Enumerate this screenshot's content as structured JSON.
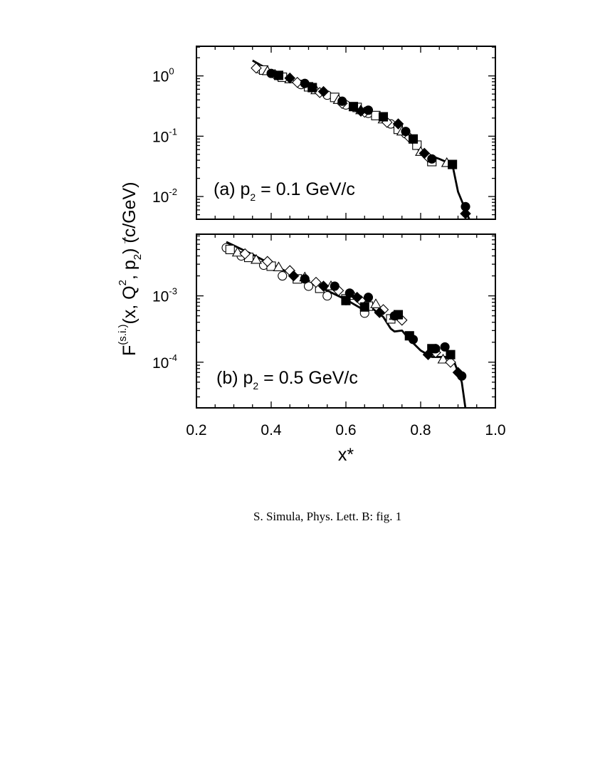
{
  "chart_data": [
    {
      "type": "scatter",
      "panel_id": "a",
      "title": "(a)  p2 = 0.1 GeV/c",
      "panel_label": {
        "prefix": "(a)  p",
        "sub": "2",
        "suffix": " = 0.1 GeV/c"
      },
      "xlabel": "x*",
      "ylabel": "F^(s.i.)(x, Q^2, p2) (c/GeV)",
      "x_scale": "linear",
      "y_scale": "log",
      "xlim": [
        0.2,
        1.0
      ],
      "ylim": [
        0.0042,
        3.1
      ],
      "y_ticks": [
        {
          "value": 1.0,
          "base": "10",
          "exp": "0"
        },
        {
          "value": 0.1,
          "base": "10",
          "exp": "-1"
        },
        {
          "value": 0.01,
          "base": "10",
          "exp": "-2"
        }
      ],
      "series": [
        {
          "name": "open circle",
          "marker": "circle",
          "filled": false,
          "points": [
            [
              0.37,
              1.3
            ],
            [
              0.42,
              1.0
            ],
            [
              0.48,
              0.72
            ],
            [
              0.55,
              0.48
            ],
            [
              0.6,
              0.33
            ],
            [
              0.66,
              0.24
            ],
            [
              0.72,
              0.16
            ],
            [
              0.76,
              0.11
            ]
          ]
        },
        {
          "name": "open square",
          "marker": "square",
          "filled": false,
          "points": [
            [
              0.38,
              1.25
            ],
            [
              0.43,
              0.95
            ],
            [
              0.5,
              0.66
            ],
            [
              0.57,
              0.44
            ],
            [
              0.63,
              0.3
            ],
            [
              0.68,
              0.22
            ],
            [
              0.74,
              0.13
            ],
            [
              0.79,
              0.071
            ],
            [
              0.83,
              0.038
            ]
          ]
        },
        {
          "name": "open triangle",
          "marker": "triangle",
          "filled": false,
          "points": [
            [
              0.39,
              1.2
            ],
            [
              0.45,
              0.88
            ],
            [
              0.52,
              0.58
            ],
            [
              0.58,
              0.4
            ],
            [
              0.64,
              0.27
            ],
            [
              0.7,
              0.19
            ],
            [
              0.75,
              0.12
            ],
            [
              0.8,
              0.055
            ],
            [
              0.87,
              0.036
            ]
          ]
        },
        {
          "name": "open diamond",
          "marker": "diamond",
          "filled": false,
          "points": [
            [
              0.36,
              1.35
            ],
            [
              0.41,
              1.05
            ],
            [
              0.47,
              0.78
            ],
            [
              0.53,
              0.53
            ],
            [
              0.59,
              0.35
            ],
            [
              0.65,
              0.25
            ],
            [
              0.71,
              0.17
            ],
            [
              0.77,
              0.095
            ],
            [
              0.82,
              0.045
            ]
          ]
        },
        {
          "name": "filled circle",
          "marker": "circle",
          "filled": true,
          "points": [
            [
              0.4,
              1.1
            ],
            [
              0.49,
              0.75
            ],
            [
              0.59,
              0.38
            ],
            [
              0.66,
              0.27
            ],
            [
              0.76,
              0.12
            ],
            [
              0.83,
              0.042
            ],
            [
              0.92,
              0.0068
            ]
          ]
        },
        {
          "name": "filled square",
          "marker": "square",
          "filled": true,
          "points": [
            [
              0.42,
              1.02
            ],
            [
              0.51,
              0.64
            ],
            [
              0.62,
              0.31
            ],
            [
              0.7,
              0.21
            ],
            [
              0.78,
              0.09
            ],
            [
              0.885,
              0.034
            ]
          ]
        },
        {
          "name": "filled diamond",
          "marker": "diamond",
          "filled": true,
          "points": [
            [
              0.45,
              0.92
            ],
            [
              0.54,
              0.55
            ],
            [
              0.64,
              0.26
            ],
            [
              0.74,
              0.16
            ],
            [
              0.81,
              0.052
            ],
            [
              0.92,
              0.0052
            ]
          ]
        }
      ],
      "curve": {
        "name": "theory",
        "points": [
          [
            0.35,
            1.8
          ],
          [
            0.4,
            1.2
          ],
          [
            0.45,
            0.85
          ],
          [
            0.5,
            0.63
          ],
          [
            0.55,
            0.46
          ],
          [
            0.6,
            0.34
          ],
          [
            0.65,
            0.25
          ],
          [
            0.7,
            0.18
          ],
          [
            0.75,
            0.12
          ],
          [
            0.8,
            0.055
          ],
          [
            0.85,
            0.042
          ],
          [
            0.885,
            0.034
          ],
          [
            0.9,
            0.012
          ],
          [
            0.92,
            0.006
          ],
          [
            0.93,
            0.0042
          ]
        ]
      }
    },
    {
      "type": "scatter",
      "panel_id": "b",
      "title": "(b)  p2 = 0.5 GeV/c",
      "panel_label": {
        "prefix": "(b)  p",
        "sub": "2",
        "suffix": " = 0.5 GeV/c"
      },
      "xlabel": "x*",
      "ylabel": "F^(s.i.)(x, Q^2, p2) (c/GeV)",
      "x_scale": "linear",
      "y_scale": "log",
      "xlim": [
        0.2,
        1.0
      ],
      "ylim": [
        2.05e-05,
        0.0085
      ],
      "y_ticks": [
        {
          "value": 0.001,
          "base": "10",
          "exp": "-3"
        },
        {
          "value": 0.0001,
          "base": "10",
          "exp": "-4"
        }
      ],
      "series": [
        {
          "name": "open circle",
          "marker": "circle",
          "filled": false,
          "points": [
            [
              0.28,
              0.0053
            ],
            [
              0.32,
              0.004
            ],
            [
              0.38,
              0.0029
            ],
            [
              0.43,
              0.002
            ],
            [
              0.5,
              0.0014
            ],
            [
              0.55,
              0.001
            ],
            [
              0.6,
              0.00085
            ],
            [
              0.65,
              0.00055
            ]
          ]
        },
        {
          "name": "open square",
          "marker": "square",
          "filled": false,
          "points": [
            [
              0.29,
              0.005
            ],
            [
              0.34,
              0.0038
            ],
            [
              0.4,
              0.0028
            ],
            [
              0.47,
              0.0018
            ],
            [
              0.53,
              0.0013
            ],
            [
              0.6,
              0.0009
            ],
            [
              0.66,
              0.0007
            ],
            [
              0.72,
              0.00045
            ]
          ]
        },
        {
          "name": "open triangle",
          "marker": "triangle",
          "filled": false,
          "points": [
            [
              0.31,
              0.0045
            ],
            [
              0.36,
              0.0035
            ],
            [
              0.42,
              0.0027
            ],
            [
              0.49,
              0.0019
            ],
            [
              0.56,
              0.0014
            ],
            [
              0.62,
              0.001
            ],
            [
              0.68,
              0.00075
            ],
            [
              0.73,
              0.0005
            ],
            [
              0.86,
              0.00011
            ]
          ]
        },
        {
          "name": "open diamond",
          "marker": "diamond",
          "filled": false,
          "points": [
            [
              0.33,
              0.0043
            ],
            [
              0.39,
              0.0033
            ],
            [
              0.45,
              0.0024
            ],
            [
              0.52,
              0.0016
            ],
            [
              0.58,
              0.0012
            ],
            [
              0.64,
              0.00085
            ],
            [
              0.7,
              0.00062
            ],
            [
              0.75,
              0.00043
            ],
            [
              0.84,
              0.00014
            ],
            [
              0.88,
              0.0001
            ]
          ]
        },
        {
          "name": "filled circle",
          "marker": "circle",
          "filled": true,
          "points": [
            [
              0.49,
              0.0018
            ],
            [
              0.57,
              0.0014
            ],
            [
              0.61,
              0.0011
            ],
            [
              0.66,
              0.00095
            ],
            [
              0.73,
              0.0005
            ],
            [
              0.78,
              0.00022
            ],
            [
              0.84,
              0.00016
            ],
            [
              0.865,
              0.00017
            ],
            [
              0.91,
              6.2e-05
            ]
          ]
        },
        {
          "name": "filled square",
          "marker": "square",
          "filled": true,
          "points": [
            [
              0.6,
              0.00085
            ],
            [
              0.65,
              0.00068
            ],
            [
              0.74,
              0.00052
            ],
            [
              0.77,
              0.00025
            ],
            [
              0.83,
              0.00016
            ],
            [
              0.88,
              0.00013
            ]
          ]
        },
        {
          "name": "filled diamond",
          "marker": "diamond",
          "filled": true,
          "points": [
            [
              0.46,
              0.002
            ],
            [
              0.54,
              0.0014
            ],
            [
              0.63,
              0.00095
            ],
            [
              0.69,
              0.00056
            ],
            [
              0.82,
              0.00013
            ],
            [
              0.9,
              7e-05
            ]
          ]
        }
      ],
      "curve": {
        "name": "theory",
        "points": [
          [
            0.28,
            0.0065
          ],
          [
            0.35,
            0.0042
          ],
          [
            0.4,
            0.003
          ],
          [
            0.45,
            0.0022
          ],
          [
            0.5,
            0.0016
          ],
          [
            0.55,
            0.0012
          ],
          [
            0.6,
            0.00088
          ],
          [
            0.64,
            0.00065
          ],
          [
            0.67,
            0.00065
          ],
          [
            0.7,
            0.00048
          ],
          [
            0.72,
            0.00032
          ],
          [
            0.73,
            0.00029
          ],
          [
            0.75,
            0.0003
          ],
          [
            0.77,
            0.00022
          ],
          [
            0.8,
            0.00015
          ],
          [
            0.83,
            0.00012
          ],
          [
            0.87,
            0.00012
          ],
          [
            0.89,
            0.0001
          ],
          [
            0.91,
            5e-05
          ],
          [
            0.92,
            2e-05
          ]
        ]
      }
    }
  ],
  "x_axis": {
    "tick_labels": [
      "0.2",
      "0.4",
      "0.6",
      "0.8",
      "1.0"
    ],
    "tick_values": [
      0.2,
      0.4,
      0.6,
      0.8,
      1.0
    ],
    "title": "x*"
  },
  "y_axis": {
    "title_parts": {
      "F": "F",
      "sup": "(s.i.)",
      "args1": "(x, Q",
      "q_sup": "2",
      "args2": ", ",
      "p": "p",
      "arrow": "→",
      "p_sub": "2",
      "args3": ")  (c/GeV)"
    }
  },
  "caption": "S. Simula, Phys. Lett. B: fig. 1",
  "colors": {
    "ink": "#000000",
    "background": "#ffffff"
  }
}
